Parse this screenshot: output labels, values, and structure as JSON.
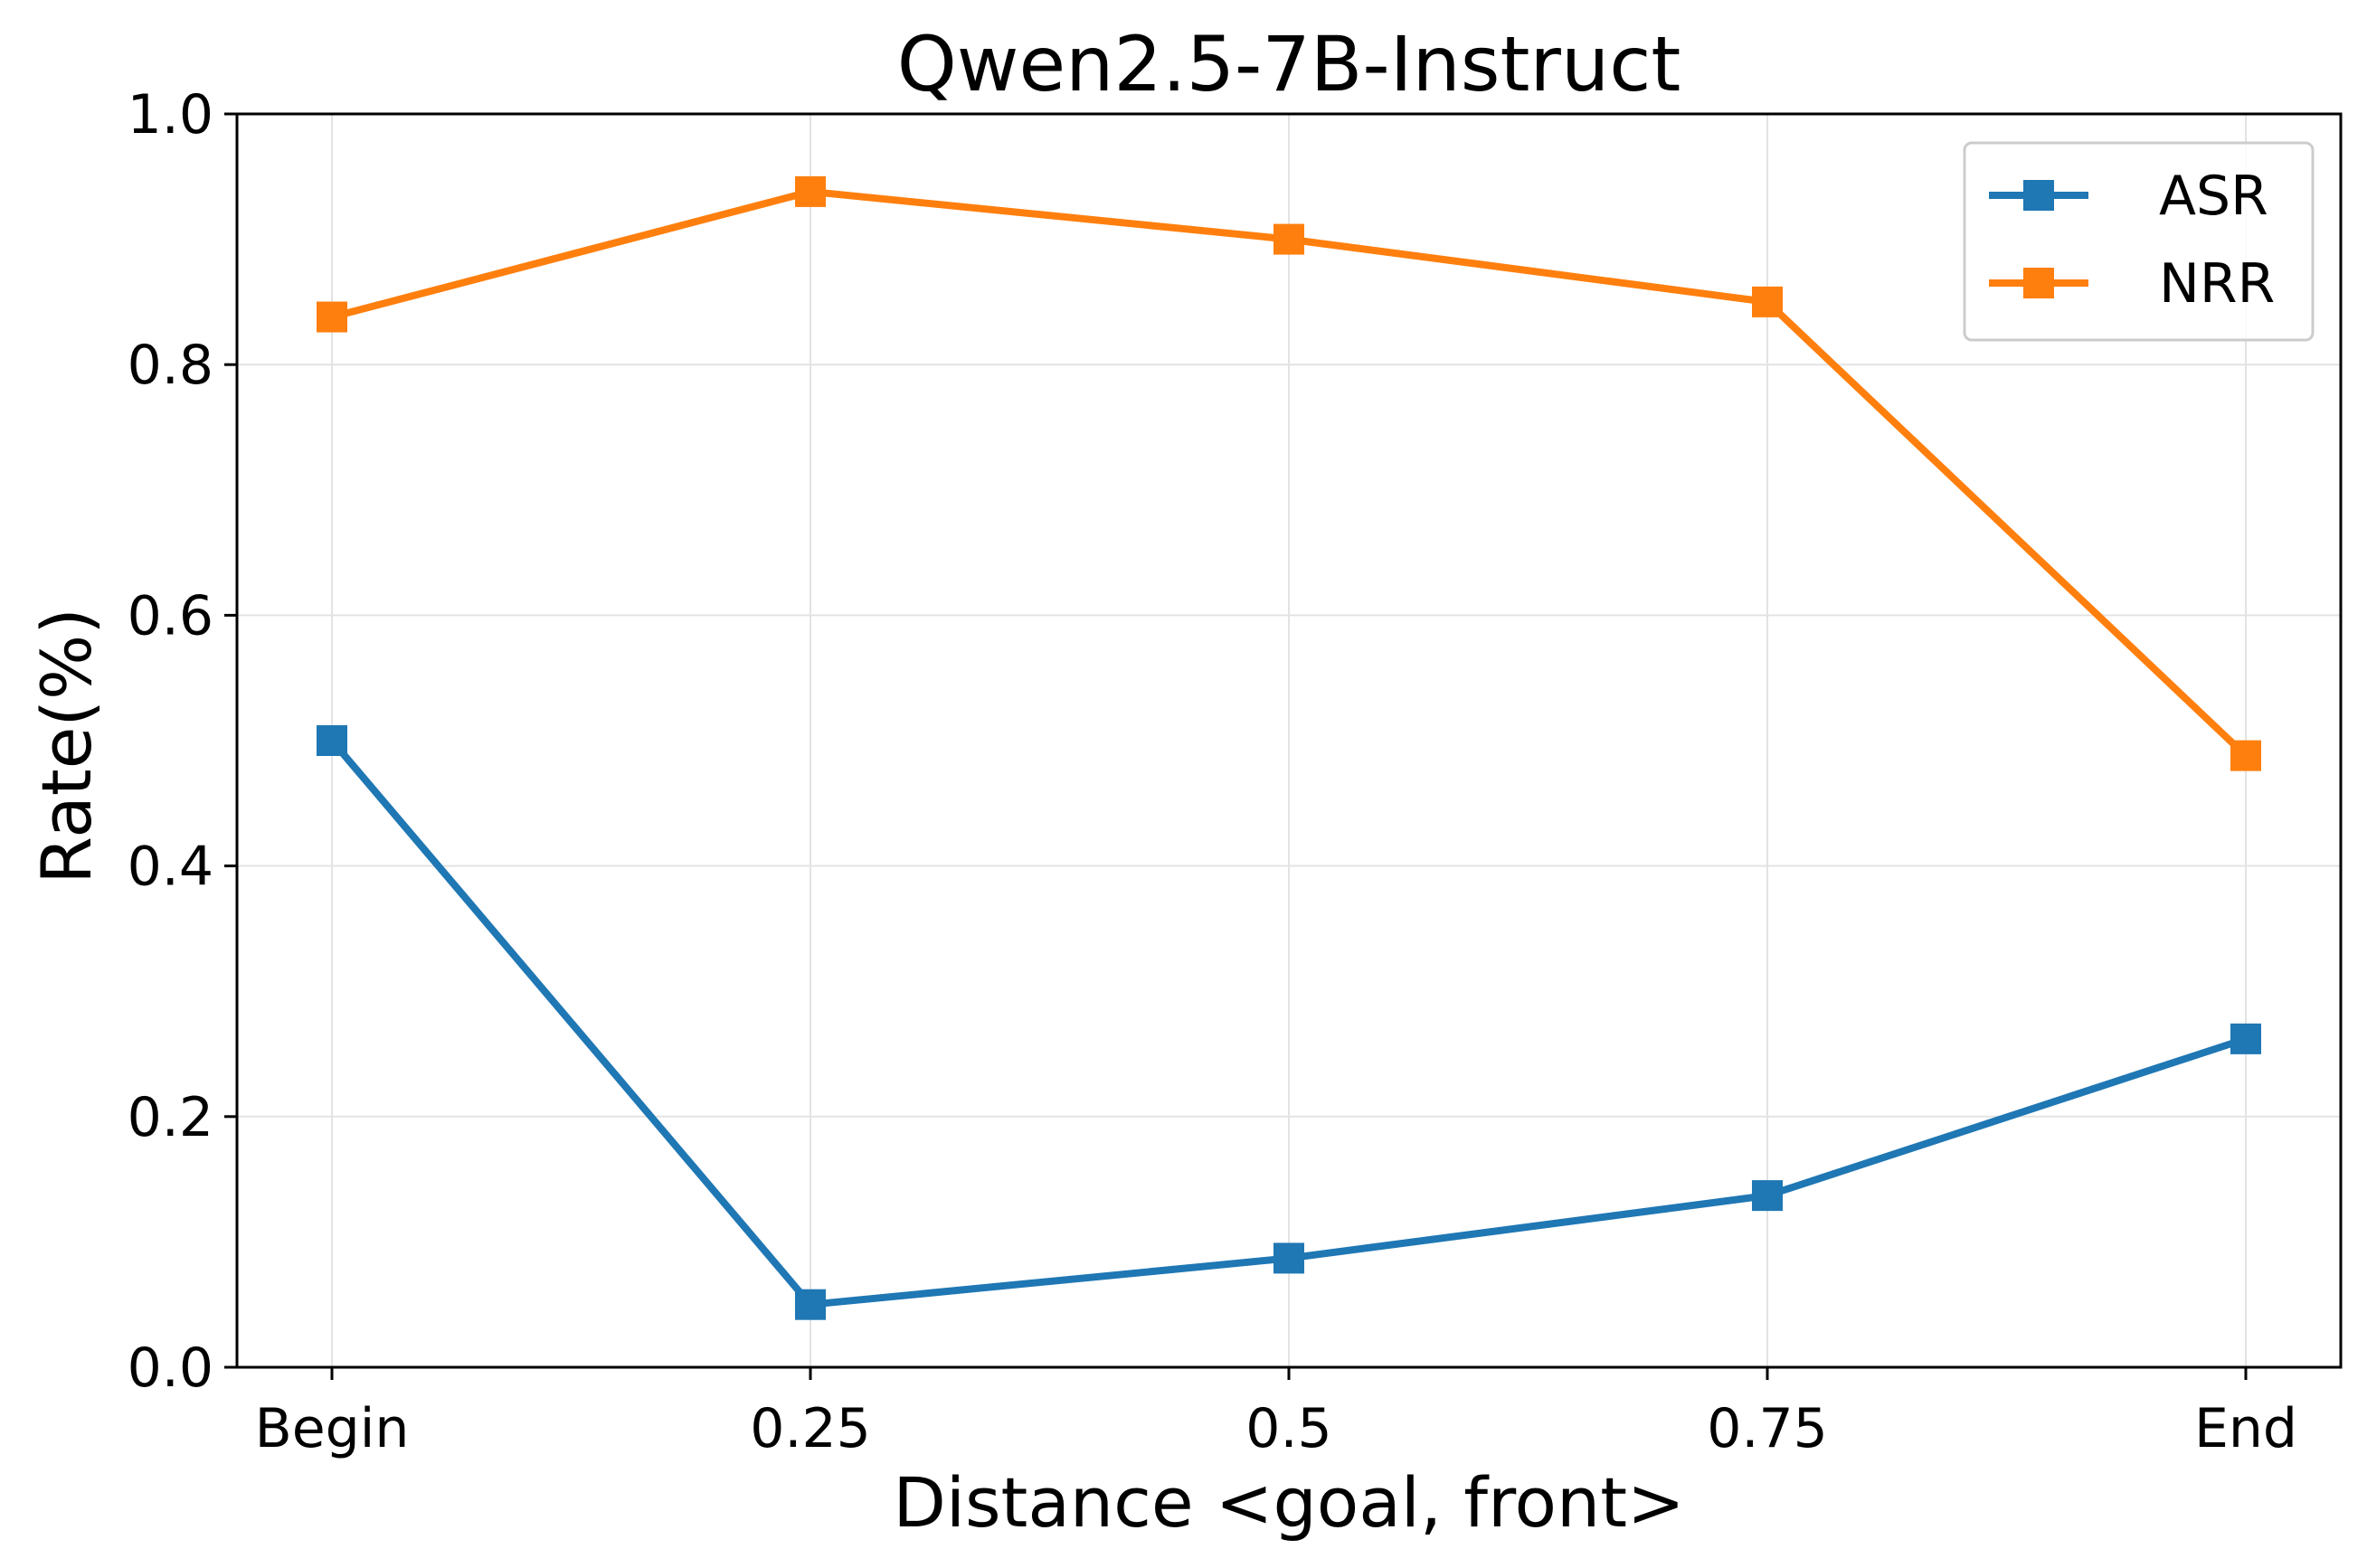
{
  "chart_data": {
    "type": "line",
    "title": "Qwen2.5-7B-Instruct",
    "xlabel": "Distance <goal, front>",
    "ylabel": "Rate(%)",
    "categories": [
      "Begin",
      "0.25",
      "0.5",
      "0.75",
      "End"
    ],
    "ylim": [
      0.0,
      1.0
    ],
    "yticks": [
      "0.0",
      "0.2",
      "0.4",
      "0.6",
      "0.8",
      "1.0"
    ],
    "grid": true,
    "legend_position": "top-right",
    "marker": "square",
    "series": [
      {
        "name": "ASR",
        "color": "#1f77b4",
        "values": [
          0.5,
          0.05,
          0.087,
          0.137,
          0.262
        ]
      },
      {
        "name": "NRR",
        "color": "#ff7f0e",
        "values": [
          0.838,
          0.938,
          0.9,
          0.85,
          0.488
        ]
      }
    ]
  }
}
